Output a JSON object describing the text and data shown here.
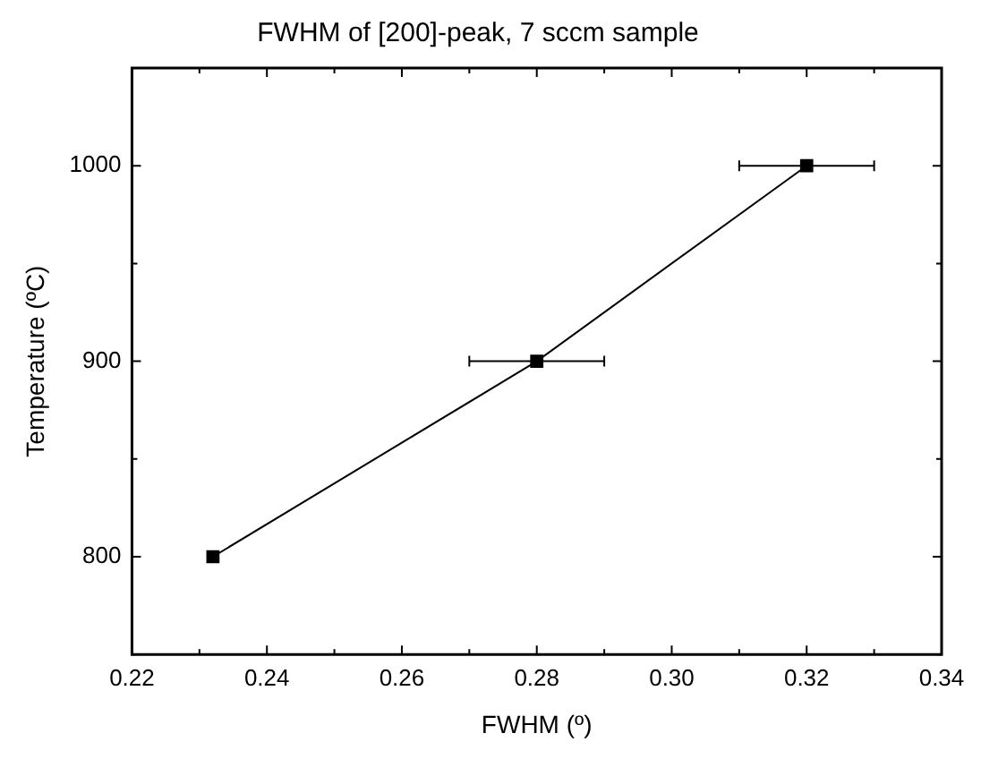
{
  "chart_data": {
    "type": "line",
    "title": "FWHM of [200]-peak, 7 sccm sample",
    "xlabel": "FWHM (º)",
    "ylabel": "Temperature (ºC)",
    "x": [
      0.232,
      0.28,
      0.32
    ],
    "series": [
      {
        "color": "#000000",
        "values": [
          800,
          900,
          1000
        ],
        "xerrors": [
          null,
          0.01,
          0.01
        ]
      }
    ],
    "xlim": [
      0.22,
      0.34
    ],
    "ylim": [
      750,
      1050
    ],
    "xticks": [
      0.22,
      {
        "value": 0.23,
        "label": null
      },
      0.24,
      {
        "value": 0.25,
        "label": null
      },
      0.26,
      {
        "value": 0.27,
        "label": null
      },
      0.28,
      {
        "value": 0.29,
        "label": null
      },
      "0.30",
      {
        "value": 0.31,
        "label": null
      },
      0.32,
      {
        "value": 0.33,
        "label": null
      },
      0.34
    ],
    "yticks": [
      {
        "value": 750,
        "label": null
      },
      800,
      {
        "value": 850,
        "label": null
      },
      900,
      {
        "value": 950,
        "label": null
      },
      1000,
      {
        "value": 1050,
        "label": null
      }
    ],
    "marker": "square",
    "line_style": "solid"
  }
}
